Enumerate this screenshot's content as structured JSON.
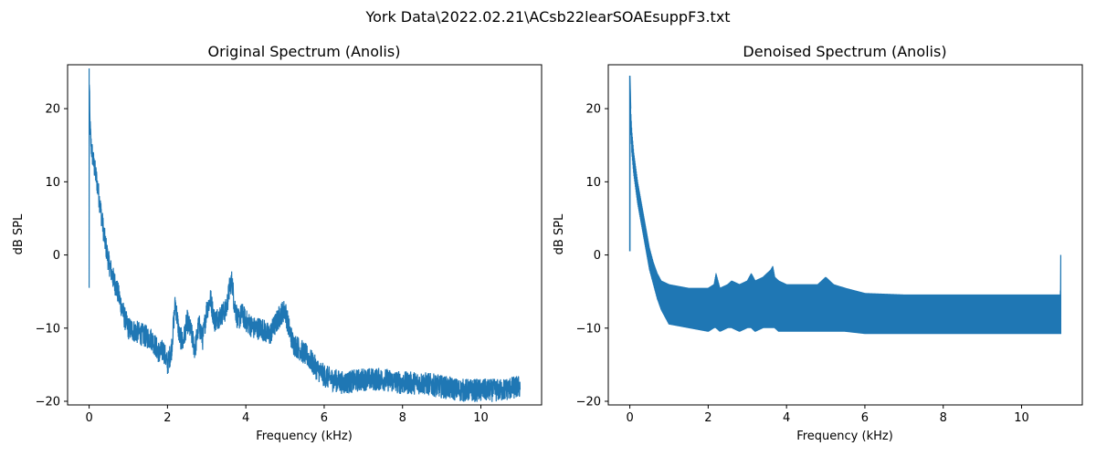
{
  "figure": {
    "suptitle": "York Data\\2022.02.21\\ACsb22learSOAEsuppF3.txt"
  },
  "chart_data": [
    {
      "type": "line",
      "title": "Original Spectrum (Anolis)",
      "xlabel": "Frequency (kHz)",
      "ylabel": "dB SPL",
      "xlim": [
        -0.55,
        11.55
      ],
      "ylim": [
        -20.5,
        26.0
      ],
      "xticks": [
        0,
        2,
        4,
        6,
        8,
        10
      ],
      "yticks": [
        -20,
        -10,
        0,
        10,
        20
      ],
      "grid": false,
      "color": "#1f77b4",
      "series": [
        {
          "noise_band": 1.6,
          "x": [
            0.0,
            0.0,
            0.02,
            0.05,
            0.1,
            0.15,
            0.2,
            0.3,
            0.4,
            0.5,
            0.6,
            0.7,
            0.8,
            0.9,
            1.0,
            1.2,
            1.4,
            1.6,
            1.8,
            1.9,
            2.0,
            2.1,
            2.2,
            2.3,
            2.4,
            2.5,
            2.6,
            2.7,
            2.8,
            2.9,
            3.0,
            3.1,
            3.2,
            3.3,
            3.4,
            3.5,
            3.6,
            3.65,
            3.7,
            3.8,
            3.9,
            4.0,
            4.2,
            4.4,
            4.6,
            4.8,
            4.9,
            5.0,
            5.1,
            5.2,
            5.4,
            5.6,
            5.8,
            6.0,
            6.2,
            6.5,
            7.0,
            7.5,
            8.0,
            8.5,
            9.0,
            9.5,
            10.0,
            10.5,
            11.0
          ],
          "y": [
            -4.5,
            25.5,
            18.0,
            15.0,
            13.0,
            11.5,
            10.0,
            6.0,
            2.0,
            -1.0,
            -3.0,
            -4.5,
            -6.5,
            -8.5,
            -10.0,
            -10.5,
            -11.0,
            -11.5,
            -13.5,
            -13.0,
            -15.0,
            -13.0,
            -6.5,
            -11.0,
            -12.0,
            -9.0,
            -10.5,
            -13.0,
            -9.5,
            -11.5,
            -7.5,
            -6.0,
            -9.0,
            -8.5,
            -8.0,
            -7.5,
            -4.0,
            -3.5,
            -6.5,
            -9.0,
            -8.0,
            -9.0,
            -10.0,
            -10.0,
            -11.0,
            -9.0,
            -8.0,
            -7.5,
            -10.0,
            -12.0,
            -13.0,
            -14.0,
            -15.5,
            -16.5,
            -17.0,
            -17.5,
            -17.0,
            -17.0,
            -17.5,
            -17.5,
            -18.0,
            -18.5,
            -18.5,
            -18.5,
            -18.0
          ]
        }
      ]
    },
    {
      "type": "line",
      "title": "Denoised Spectrum (Anolis)",
      "xlabel": "Frequency (kHz)",
      "ylabel": "dB SPL",
      "xlim": [
        -0.55,
        11.55
      ],
      "ylim": [
        -20.5,
        26.0
      ],
      "xticks": [
        0,
        2,
        4,
        6,
        8,
        10
      ],
      "yticks": [
        -20,
        -10,
        0,
        10,
        20
      ],
      "grid": false,
      "color": "#1f77b4",
      "series": [
        {
          "noise_band": 0,
          "x": [
            0.0,
            0.0,
            0.02,
            0.05,
            0.1,
            0.2,
            0.3,
            0.4,
            0.5,
            0.6,
            0.7,
            0.8,
            1.0,
            1.5,
            2.0,
            2.15,
            2.2,
            2.3,
            2.5,
            2.6,
            2.8,
            3.0,
            3.1,
            3.2,
            3.4,
            3.6,
            3.65,
            3.7,
            3.8,
            4.0,
            4.5,
            4.8,
            5.0,
            5.2,
            5.5,
            6.0,
            7.0,
            8.0,
            9.0,
            10.0,
            10.99,
            11.0,
            11.0
          ],
          "upper": [
            0.5,
            24.5,
            20.0,
            17.0,
            14.0,
            10.0,
            7.0,
            4.0,
            1.0,
            -1.0,
            -2.5,
            -3.5,
            -4.0,
            -4.5,
            -4.5,
            -4.0,
            -2.5,
            -4.5,
            -4.0,
            -3.5,
            -4.0,
            -3.5,
            -2.5,
            -3.5,
            -3.0,
            -2.0,
            -1.5,
            -3.0,
            -3.5,
            -4.0,
            -4.0,
            -4.0,
            -3.0,
            -4.0,
            -4.5,
            -5.2,
            -5.4,
            -5.4,
            -5.4,
            -5.4,
            -5.4,
            0.0,
            0.0
          ],
          "lower": [
            0.5,
            24.5,
            18.0,
            14.0,
            11.0,
            7.0,
            4.0,
            1.0,
            -2.0,
            -4.0,
            -6.0,
            -7.5,
            -9.5,
            -10.0,
            -10.5,
            -10.0,
            -10.0,
            -10.5,
            -10.0,
            -10.0,
            -10.5,
            -10.0,
            -10.0,
            -10.5,
            -10.0,
            -10.0,
            -10.0,
            -10.0,
            -10.5,
            -10.5,
            -10.5,
            -10.5,
            -10.5,
            -10.5,
            -10.5,
            -10.8,
            -10.8,
            -10.8,
            -10.8,
            -10.8,
            -10.8,
            0.0,
            -10.8
          ]
        }
      ]
    }
  ]
}
